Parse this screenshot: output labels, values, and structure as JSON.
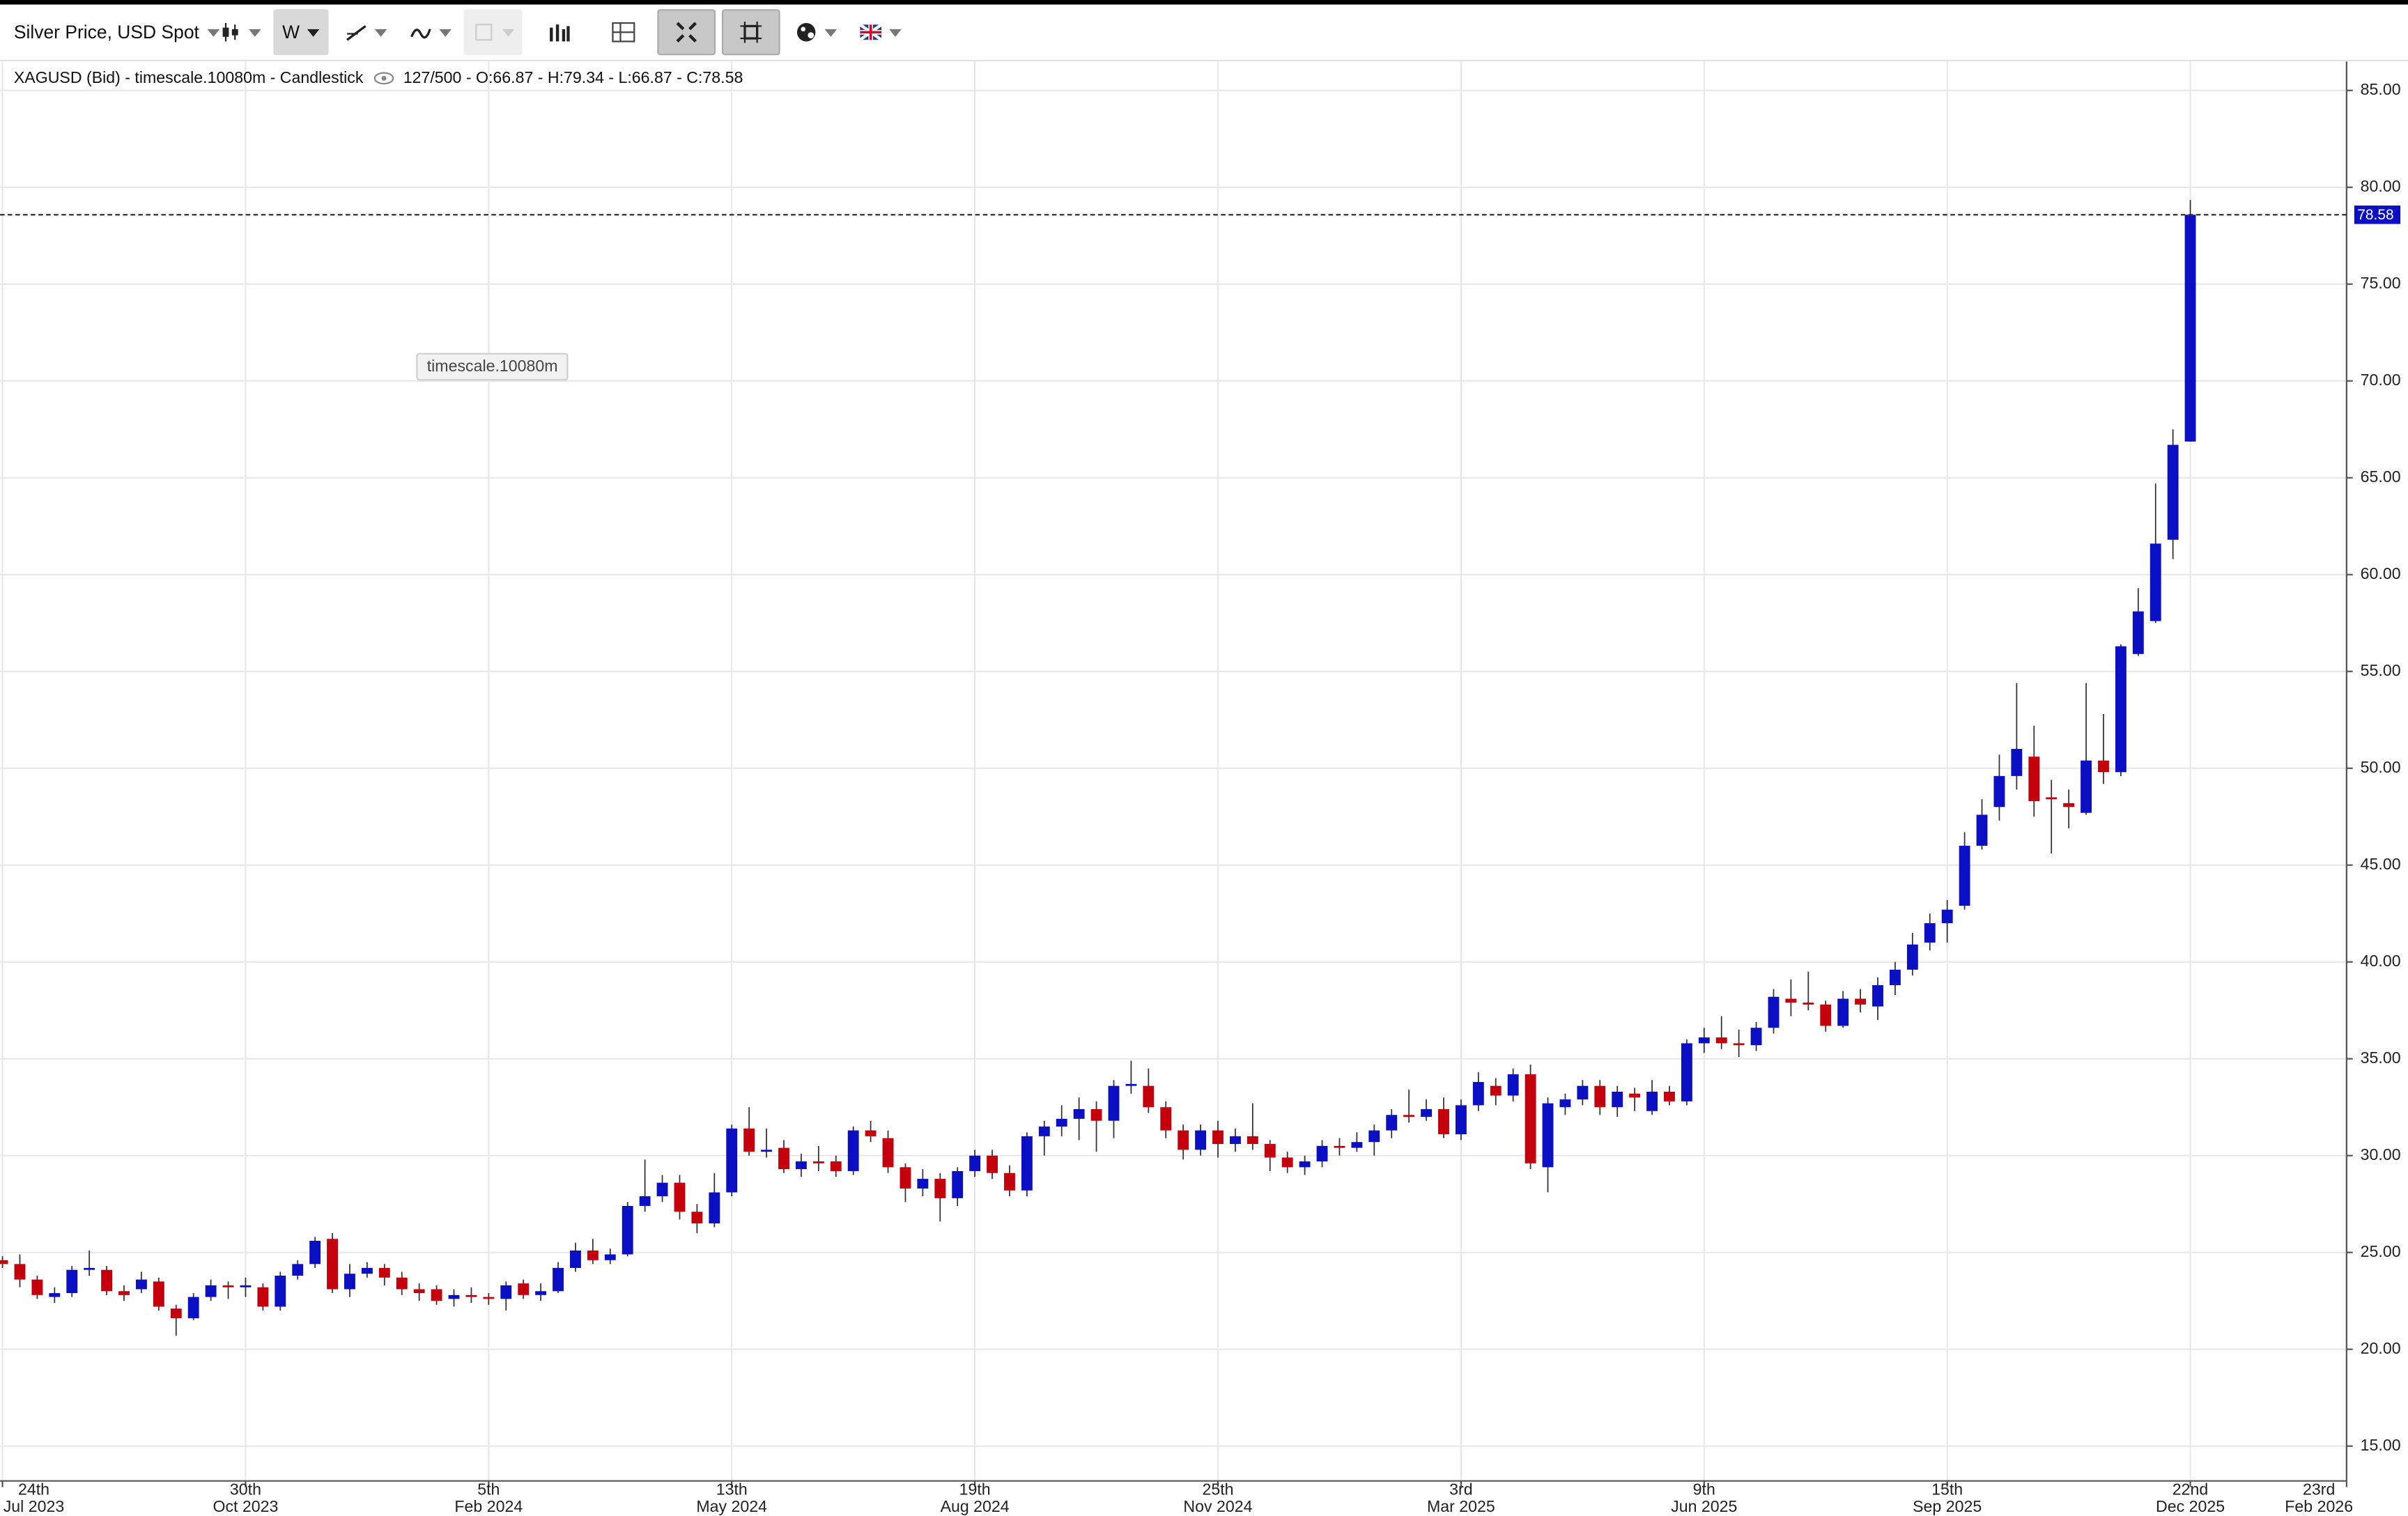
{
  "toolbar": {
    "instrument": "Silver Price, USD Spot",
    "interval": "W"
  },
  "info": {
    "description": "XAGUSD (Bid) - timescale.10080m - Candlestick",
    "ohlc": "127/500 - O:66.87 - H:79.34 - L:66.87 - C:78.58"
  },
  "tooltip": "timescale.10080m",
  "chart_data": {
    "type": "candlestick",
    "x": [
      "2023-07-24",
      "2023-07-31",
      "2023-08-07",
      "2023-08-14",
      "2023-08-21",
      "2023-08-28",
      "2023-09-04",
      "2023-09-11",
      "2023-09-18",
      "2023-09-25",
      "2023-10-02",
      "2023-10-09",
      "2023-10-16",
      "2023-10-23",
      "2023-10-30",
      "2023-11-06",
      "2023-11-13",
      "2023-11-20",
      "2023-11-27",
      "2023-12-04",
      "2023-12-11",
      "2023-12-18",
      "2023-12-25",
      "2024-01-01",
      "2024-01-08",
      "2024-01-15",
      "2024-01-22",
      "2024-01-29",
      "2024-02-05",
      "2024-02-12",
      "2024-02-19",
      "2024-02-26",
      "2024-03-04",
      "2024-03-11",
      "2024-03-18",
      "2024-03-25",
      "2024-04-01",
      "2024-04-08",
      "2024-04-15",
      "2024-04-22",
      "2024-04-29",
      "2024-05-06",
      "2024-05-13",
      "2024-05-20",
      "2024-05-27",
      "2024-06-03",
      "2024-06-10",
      "2024-06-17",
      "2024-06-24",
      "2024-07-01",
      "2024-07-08",
      "2024-07-15",
      "2024-07-22",
      "2024-07-29",
      "2024-08-05",
      "2024-08-12",
      "2024-08-19",
      "2024-08-26",
      "2024-09-02",
      "2024-09-09",
      "2024-09-16",
      "2024-09-23",
      "2024-09-30",
      "2024-10-07",
      "2024-10-14",
      "2024-10-21",
      "2024-10-28",
      "2024-11-04",
      "2024-11-11",
      "2024-11-18",
      "2024-11-25",
      "2024-12-02",
      "2024-12-09",
      "2024-12-16",
      "2024-12-23",
      "2024-12-30",
      "2025-01-06",
      "2025-01-13",
      "2025-01-20",
      "2025-01-27",
      "2025-02-03",
      "2025-02-10",
      "2025-02-17",
      "2025-02-24",
      "2025-03-03",
      "2025-03-10",
      "2025-03-17",
      "2025-03-24",
      "2025-03-31",
      "2025-04-07",
      "2025-04-14",
      "2025-04-21",
      "2025-04-28",
      "2025-05-05",
      "2025-05-12",
      "2025-05-19",
      "2025-05-26",
      "2025-06-02",
      "2025-06-09",
      "2025-06-16",
      "2025-06-23",
      "2025-06-30",
      "2025-07-07",
      "2025-07-14",
      "2025-07-21",
      "2025-07-28",
      "2025-08-04",
      "2025-08-11",
      "2025-08-18",
      "2025-08-25",
      "2025-09-01",
      "2025-09-08",
      "2025-09-15",
      "2025-09-22",
      "2025-09-29",
      "2025-10-06",
      "2025-10-13",
      "2025-10-20",
      "2025-10-27",
      "2025-11-03",
      "2025-11-10",
      "2025-11-17",
      "2025-11-24",
      "2025-12-01",
      "2025-12-08",
      "2025-12-15",
      "2025-12-22"
    ],
    "open": [
      24.6,
      24.4,
      23.6,
      22.7,
      22.9,
      24.1,
      24.1,
      23.0,
      23.1,
      23.5,
      22.1,
      21.6,
      22.7,
      23.3,
      23.2,
      23.2,
      22.2,
      23.8,
      24.4,
      25.7,
      23.1,
      23.9,
      24.2,
      23.7,
      23.1,
      23.1,
      22.6,
      22.8,
      22.7,
      22.6,
      23.4,
      22.8,
      23.0,
      24.2,
      25.1,
      24.6,
      24.9,
      27.4,
      27.9,
      28.6,
      27.1,
      26.5,
      28.1,
      31.4,
      30.2,
      30.4,
      29.3,
      29.7,
      29.7,
      29.2,
      31.3,
      30.9,
      29.4,
      28.3,
      28.8,
      27.8,
      29.2,
      30.0,
      29.1,
      28.2,
      31.0,
      31.5,
      31.9,
      32.4,
      31.8,
      33.6,
      33.6,
      32.5,
      31.3,
      30.3,
      31.3,
      30.6,
      31.0,
      30.6,
      29.9,
      29.4,
      29.7,
      30.5,
      30.4,
      30.7,
      31.3,
      32.1,
      32.0,
      32.4,
      31.1,
      32.6,
      33.6,
      33.1,
      34.2,
      29.4,
      32.5,
      32.9,
      33.6,
      32.5,
      33.2,
      32.3,
      33.3,
      32.8,
      35.8,
      36.1,
      35.8,
      35.7,
      36.6,
      38.1,
      37.9,
      37.8,
      36.7,
      38.1,
      37.7,
      38.8,
      39.6,
      41.0,
      42.0,
      42.9,
      46.0,
      48.0,
      49.6,
      50.6,
      48.5,
      48.2,
      47.7,
      50.4,
      49.8,
      55.9,
      57.6,
      61.8,
      66.87
    ],
    "high": [
      24.8,
      24.9,
      23.8,
      23.2,
      24.3,
      25.1,
      24.3,
      23.3,
      24.0,
      23.7,
      22.3,
      22.9,
      23.6,
      23.5,
      23.7,
      23.4,
      24.0,
      24.6,
      25.8,
      26.0,
      24.4,
      24.5,
      24.4,
      24.0,
      23.4,
      23.3,
      23.1,
      23.2,
      22.9,
      23.5,
      23.6,
      23.4,
      24.5,
      25.5,
      25.7,
      25.2,
      27.6,
      29.8,
      29.0,
      29.0,
      27.5,
      29.1,
      31.6,
      32.5,
      31.4,
      30.8,
      30.1,
      30.5,
      30.0,
      31.5,
      31.8,
      31.3,
      29.6,
      29.3,
      29.1,
      29.4,
      30.3,
      30.3,
      29.5,
      31.2,
      31.8,
      32.6,
      33.0,
      32.8,
      33.9,
      34.9,
      34.5,
      32.8,
      31.6,
      31.6,
      31.8,
      31.4,
      32.7,
      30.8,
      30.2,
      30.0,
      30.8,
      30.9,
      31.2,
      31.6,
      32.4,
      33.4,
      32.9,
      33.0,
      32.9,
      34.3,
      34.0,
      34.5,
      34.7,
      33.0,
      33.2,
      33.9,
      33.9,
      33.6,
      33.5,
      33.9,
      33.6,
      36.0,
      36.6,
      37.2,
      36.5,
      36.9,
      38.6,
      39.1,
      39.5,
      38.0,
      38.5,
      38.6,
      39.2,
      40.0,
      41.5,
      42.5,
      43.2,
      46.7,
      48.4,
      50.7,
      54.4,
      52.2,
      49.4,
      48.9,
      54.4,
      52.8,
      56.4,
      59.3,
      64.7,
      67.5,
      79.34
    ],
    "low": [
      24.2,
      23.2,
      22.6,
      22.4,
      22.7,
      23.8,
      22.8,
      22.5,
      22.9,
      22.0,
      20.7,
      21.5,
      22.5,
      22.6,
      22.7,
      22.0,
      22.0,
      23.6,
      24.2,
      22.9,
      22.7,
      23.7,
      23.3,
      22.8,
      22.5,
      22.3,
      22.2,
      22.4,
      22.3,
      22.0,
      22.6,
      22.5,
      22.9,
      24.0,
      24.4,
      24.4,
      24.8,
      27.1,
      27.6,
      26.7,
      26.0,
      26.3,
      27.9,
      30.0,
      29.9,
      29.1,
      28.9,
      29.2,
      28.9,
      29.0,
      30.7,
      29.1,
      27.6,
      27.9,
      26.6,
      27.4,
      28.9,
      28.8,
      27.9,
      27.9,
      30.0,
      31.0,
      30.8,
      30.2,
      30.9,
      33.2,
      32.2,
      30.9,
      29.8,
      30.0,
      29.9,
      30.2,
      30.3,
      29.2,
      29.1,
      29.0,
      29.4,
      30.0,
      30.2,
      30.0,
      30.9,
      31.7,
      31.8,
      30.9,
      30.8,
      32.3,
      32.6,
      32.8,
      29.3,
      28.1,
      32.1,
      32.6,
      32.1,
      32.0,
      32.3,
      32.1,
      32.6,
      32.6,
      35.3,
      35.5,
      35.1,
      35.4,
      36.3,
      37.2,
      37.5,
      36.4,
      36.6,
      37.4,
      37.0,
      38.3,
      39.3,
      40.6,
      41.0,
      42.7,
      45.8,
      47.3,
      48.9,
      47.5,
      45.6,
      46.9,
      47.6,
      49.2,
      49.6,
      55.8,
      57.5,
      60.8,
      66.87
    ],
    "close": [
      24.4,
      23.6,
      22.8,
      22.9,
      24.1,
      24.2,
      23.0,
      22.8,
      23.6,
      22.2,
      21.6,
      22.7,
      23.3,
      23.2,
      23.3,
      22.2,
      23.8,
      24.4,
      25.6,
      23.1,
      23.9,
      24.2,
      23.7,
      23.1,
      22.9,
      22.5,
      22.8,
      22.7,
      22.6,
      23.3,
      22.8,
      23.0,
      24.2,
      25.1,
      24.6,
      24.9,
      27.4,
      27.9,
      28.6,
      27.1,
      26.5,
      28.1,
      31.4,
      30.2,
      30.3,
      29.3,
      29.7,
      29.6,
      29.2,
      31.3,
      31.0,
      29.4,
      28.3,
      28.8,
      27.8,
      29.2,
      30.0,
      29.1,
      28.2,
      31.0,
      31.5,
      31.9,
      32.4,
      31.8,
      33.6,
      33.7,
      32.5,
      31.3,
      30.3,
      31.3,
      30.6,
      31.0,
      30.6,
      29.9,
      29.4,
      29.7,
      30.5,
      30.4,
      30.7,
      31.3,
      32.1,
      32.0,
      32.4,
      31.1,
      32.6,
      33.8,
      33.1,
      34.2,
      29.6,
      32.7,
      32.9,
      33.6,
      32.5,
      33.3,
      33.0,
      33.3,
      32.8,
      35.8,
      36.1,
      35.8,
      35.7,
      36.6,
      38.2,
      37.9,
      37.8,
      36.7,
      38.1,
      37.8,
      38.8,
      39.6,
      40.9,
      42.0,
      42.7,
      46.0,
      47.6,
      49.6,
      51.0,
      48.3,
      48.4,
      48.0,
      50.4,
      49.8,
      56.3,
      58.1,
      61.6,
      66.7,
      78.58
    ],
    "up_color": "#0a0fc4",
    "down_color": "#c4000c",
    "xlim": [
      "2023-07-23",
      "2026-02-23"
    ],
    "xticks": [
      {
        "value": "2023-07-24",
        "label": "24th\nJul 2023"
      },
      {
        "value": "2023-10-30",
        "label": "30th\nOct 2023"
      },
      {
        "value": "2024-02-05",
        "label": "5th\nFeb 2024"
      },
      {
        "value": "2024-05-13",
        "label": "13th\nMay 2024"
      },
      {
        "value": "2024-08-19",
        "label": "19th\nAug 2024"
      },
      {
        "value": "2024-11-25",
        "label": "25th\nNov 2024"
      },
      {
        "value": "2025-03-03",
        "label": "3rd\nMar 2025"
      },
      {
        "value": "2025-06-09",
        "label": "9th\nJun 2025"
      },
      {
        "value": "2025-09-15",
        "label": "15th\nSep 2025"
      },
      {
        "value": "2025-12-22",
        "label": "22nd\nDec 2025"
      },
      {
        "value": "2026-02-23",
        "label": "23rd\nFeb 2026"
      }
    ],
    "ylim": [
      13.2,
      86.5
    ],
    "yticks": [
      {
        "value": 15,
        "label": "15.00"
      },
      {
        "value": 20,
        "label": "20.00"
      },
      {
        "value": 25,
        "label": "25.00"
      },
      {
        "value": 30,
        "label": "30.00"
      },
      {
        "value": 35,
        "label": "35.00"
      },
      {
        "value": 40,
        "label": "40.00"
      },
      {
        "value": 45,
        "label": "45.00"
      },
      {
        "value": 50,
        "label": "50.00"
      },
      {
        "value": 55,
        "label": "55.00"
      },
      {
        "value": 60,
        "label": "60.00"
      },
      {
        "value": 65,
        "label": "65.00"
      },
      {
        "value": 70,
        "label": "70.00"
      },
      {
        "value": 75,
        "label": "75.00"
      },
      {
        "value": 80,
        "label": "80.00"
      },
      {
        "value": 85,
        "label": "85.00"
      }
    ],
    "grid": true
  }
}
